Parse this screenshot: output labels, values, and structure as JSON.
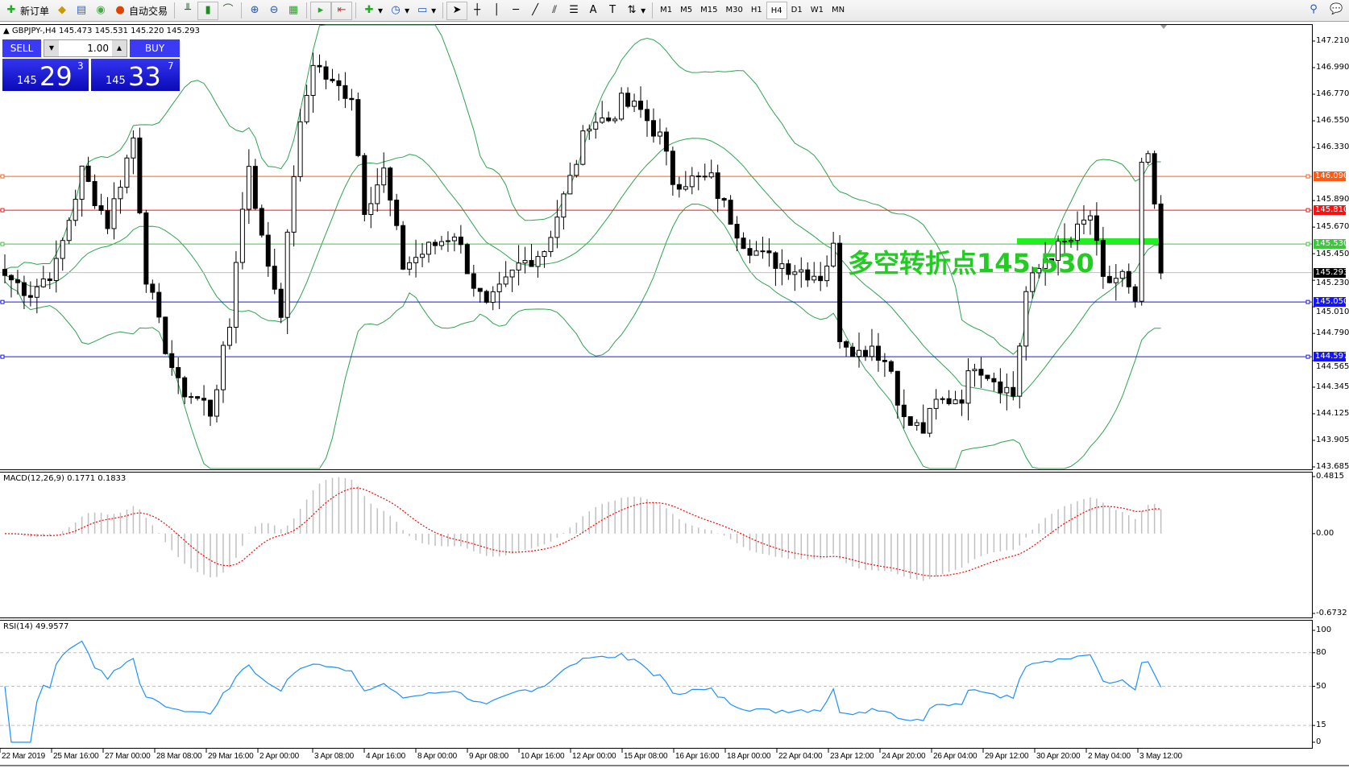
{
  "toolbar": {
    "new_order": "新订单",
    "auto_trading": "自动交易",
    "timeframes": [
      "M1",
      "M5",
      "M15",
      "M30",
      "H1",
      "H4",
      "D1",
      "W1",
      "MN"
    ],
    "active_timeframe": "H4"
  },
  "chart": {
    "header": "GBPJPY-,H4  145.473 145.531 145.220 145.293",
    "symbol": "GBPJPY-",
    "timeframe": "H4",
    "trade_panel": {
      "sell_label": "SELL",
      "buy_label": "BUY",
      "lot": "1.00",
      "sell_prefix": "145",
      "sell_big": "29",
      "sell_sup": "3",
      "buy_prefix": "145",
      "buy_big": "33",
      "buy_sup": "7"
    },
    "price_ticks": [
      "147.210",
      "146.990",
      "146.770",
      "146.550",
      "146.330",
      "145.890",
      "145.670",
      "145.450",
      "145.230",
      "145.010",
      "144.790",
      "144.565",
      "144.345",
      "144.125",
      "143.905",
      "143.685"
    ],
    "price_range": [
      143.685,
      147.21
    ],
    "levels": [
      {
        "price": "146.090",
        "color": "#ff5a14"
      },
      {
        "price": "145.810",
        "color": "#ff1010"
      },
      {
        "price": "145.530",
        "color": "#3cc83c"
      },
      {
        "price": "145.050",
        "color": "#1414ff"
      },
      {
        "price": "144.597",
        "color": "#1414ff"
      }
    ],
    "current_price": "145.293",
    "annotation": "多空转折点145.530",
    "close_path": [
      [
        0,
        145.27
      ],
      [
        4,
        145.13
      ],
      [
        8,
        145.35
      ],
      [
        12,
        146.13
      ],
      [
        16,
        145.7
      ],
      [
        20,
        146.41
      ],
      [
        22,
        145.27
      ],
      [
        24,
        144.85
      ],
      [
        27,
        144.35
      ],
      [
        31,
        144.21
      ],
      [
        32,
        144.14
      ],
      [
        35,
        144.85
      ],
      [
        36,
        145.42
      ],
      [
        38,
        146.2
      ],
      [
        40,
        145.56
      ],
      [
        43,
        144.99
      ],
      [
        45,
        146.13
      ],
      [
        46,
        146.48
      ],
      [
        48,
        147.05
      ],
      [
        51,
        146.84
      ],
      [
        54,
        146.77
      ],
      [
        55,
        146.27
      ],
      [
        56,
        145.84
      ],
      [
        59,
        146.13
      ],
      [
        62,
        145.35
      ],
      [
        66,
        145.49
      ],
      [
        70,
        145.63
      ],
      [
        73,
        145.2
      ],
      [
        75,
        144.99
      ],
      [
        78,
        145.2
      ],
      [
        80,
        145.35
      ],
      [
        84,
        145.49
      ],
      [
        86,
        145.77
      ],
      [
        88,
        146.06
      ],
      [
        91,
        146.56
      ],
      [
        94,
        146.56
      ],
      [
        96,
        146.7
      ],
      [
        99,
        146.63
      ],
      [
        102,
        146.41
      ],
      [
        104,
        146.06
      ],
      [
        107,
        146.06
      ],
      [
        110,
        146.06
      ],
      [
        112,
        145.84
      ],
      [
        115,
        145.56
      ],
      [
        118,
        145.42
      ],
      [
        122,
        145.35
      ],
      [
        127,
        145.27
      ],
      [
        129,
        145.49
      ],
      [
        130,
        144.78
      ],
      [
        133,
        144.63
      ],
      [
        135,
        144.7
      ],
      [
        138,
        144.49
      ],
      [
        140,
        144.06
      ],
      [
        143,
        143.99
      ],
      [
        145,
        144.21
      ],
      [
        149,
        144.28
      ],
      [
        151,
        144.56
      ],
      [
        154,
        144.42
      ],
      [
        157,
        144.28
      ],
      [
        159,
        145.13
      ],
      [
        162,
        145.42
      ],
      [
        166,
        145.56
      ],
      [
        169,
        145.77
      ],
      [
        171,
        145.2
      ],
      [
        174,
        145.27
      ],
      [
        176,
        144.99
      ],
      [
        177,
        146.2
      ],
      [
        178,
        146.2
      ],
      [
        179,
        145.84
      ],
      [
        180,
        145.29
      ]
    ],
    "time_labels": [
      "22 Mar 2019",
      "25 Mar 16:00",
      "27 Mar 00:00",
      "28 Mar 08:00",
      "29 Mar 16:00",
      "2 Apr 00:00",
      "3 Apr 08:00",
      "4 Apr 16:00",
      "8 Apr 00:00",
      "9 Apr 08:00",
      "10 Apr 16:00",
      "12 Apr 00:00",
      "15 Apr 08:00",
      "16 Apr 16:00",
      "18 Apr 00:00",
      "22 Apr 04:00",
      "23 Apr 12:00",
      "24 Apr 20:00",
      "26 Apr 04:00",
      "29 Apr 12:00",
      "30 Apr 20:00",
      "2 May 04:00",
      "3 May 12:00"
    ]
  },
  "macd": {
    "label": "MACD(12,26,9) 0.1771 0.1833",
    "ticks": [
      "0.4815",
      "0.00",
      "-0.6732"
    ],
    "range": [
      -0.6732,
      0.4815
    ]
  },
  "rsi": {
    "label": "RSI(14) 49.9577",
    "ticks": [
      "100",
      "80",
      "50",
      "15",
      "0"
    ],
    "levels": [
      80,
      50,
      15
    ]
  },
  "colors": {
    "bollinger": "#2ea44f",
    "macd_hist": "#c0c0c0",
    "macd_signal": "#ff0000",
    "rsi": "#1e90ff",
    "trade_blue": "#3b3bf5"
  }
}
